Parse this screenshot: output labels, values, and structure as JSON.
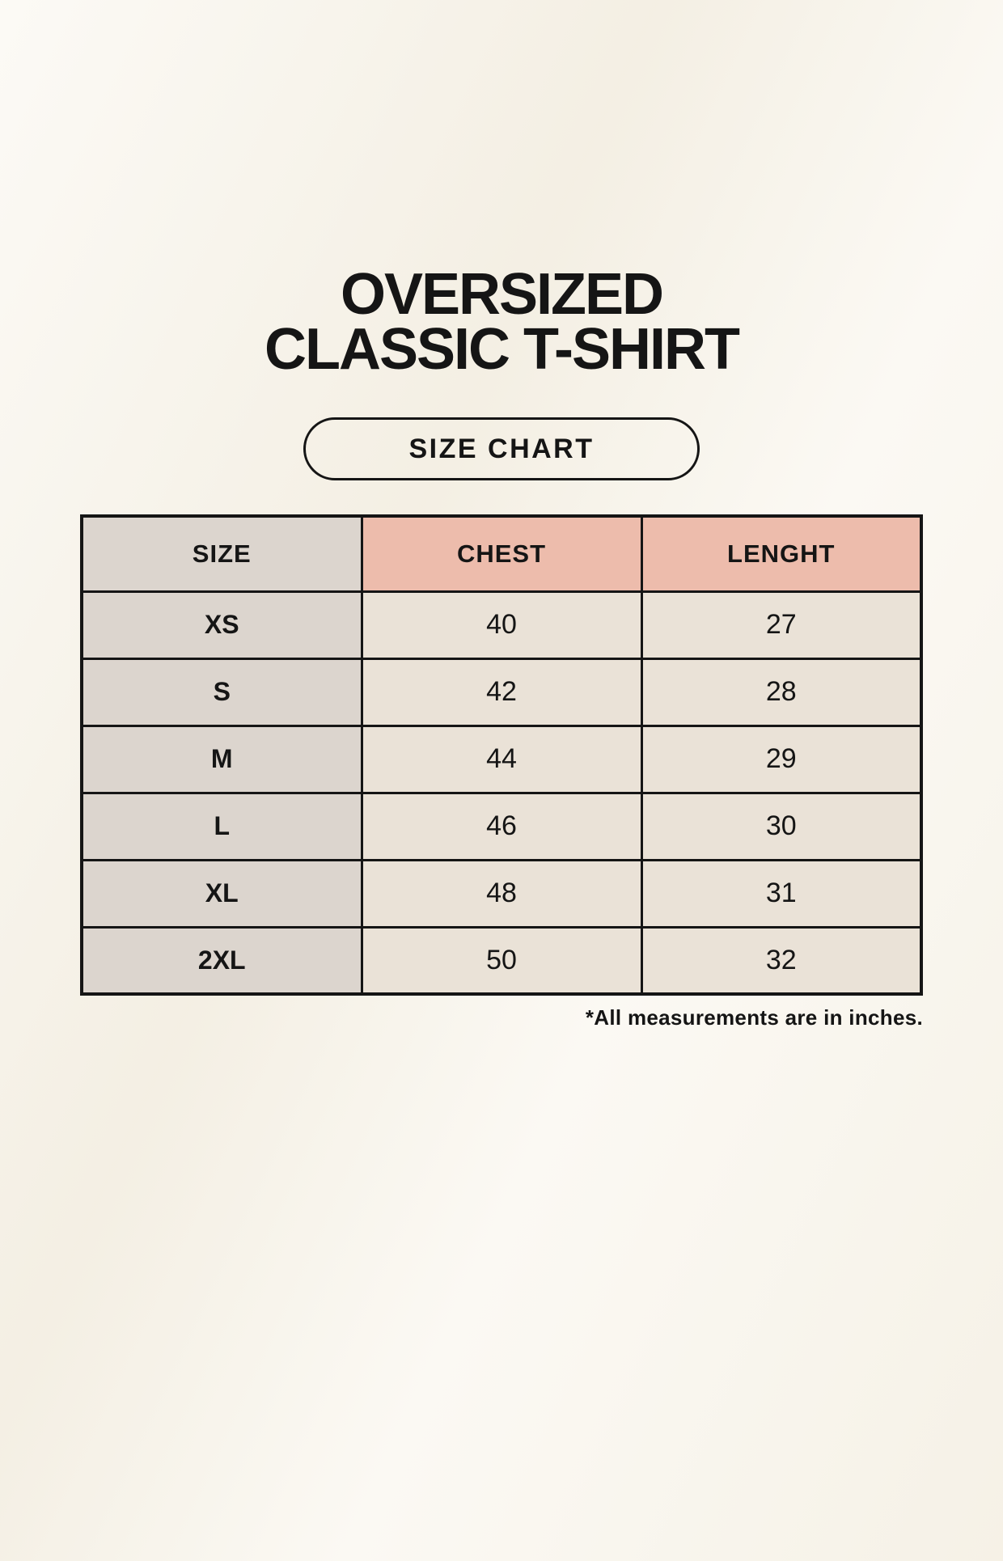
{
  "header": {
    "title_line1": "OVERSIZED",
    "title_line2": "CLASSIC T-SHIRT",
    "size_chart_button_label": "SIZE CHART"
  },
  "chart_data": {
    "type": "table",
    "title": "SIZE CHART",
    "columns": [
      "SIZE",
      "CHEST",
      "LENGHT"
    ],
    "rows": [
      [
        "XS",
        "40",
        "27"
      ],
      [
        "S",
        "42",
        "28"
      ],
      [
        "M",
        "44",
        "29"
      ],
      [
        "L",
        "46",
        "30"
      ],
      [
        "XL",
        "48",
        "31"
      ],
      [
        "2XL",
        "50",
        "32"
      ]
    ],
    "footnote": "*All measurements are in inches.",
    "units": "inches"
  },
  "colors": {
    "background": "#f8f4ea",
    "size_column_bg": "#dcd5ce",
    "measure_header_bg": "#edbcac",
    "value_cell_bg": "#eae2d7",
    "border": "#151515",
    "text": "#151515"
  }
}
